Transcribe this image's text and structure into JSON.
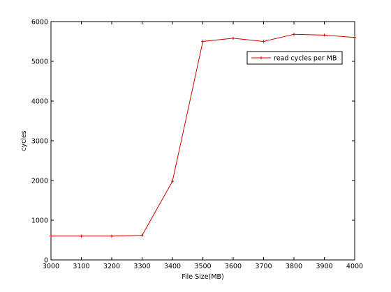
{
  "chart_data": {
    "type": "line",
    "title": "",
    "xlabel": "File Size(MB)",
    "ylabel": "cycles",
    "xlim": [
      3000,
      4000
    ],
    "ylim": [
      0,
      6000
    ],
    "xticks": [
      3000,
      3100,
      3200,
      3300,
      3400,
      3500,
      3600,
      3700,
      3800,
      3900,
      4000
    ],
    "yticks": [
      0,
      1000,
      2000,
      3000,
      4000,
      5000,
      6000
    ],
    "grid": false,
    "legend_position": "top-right",
    "series": [
      {
        "name": "read cycles per MB",
        "color": "#cc0000",
        "marker": "plus",
        "x": [
          3000,
          3100,
          3200,
          3300,
          3400,
          3500,
          3600,
          3700,
          3800,
          3900,
          4000
        ],
        "y": [
          600,
          600,
          600,
          620,
          1980,
          5500,
          5580,
          5500,
          5680,
          5660,
          5600
        ]
      }
    ]
  }
}
